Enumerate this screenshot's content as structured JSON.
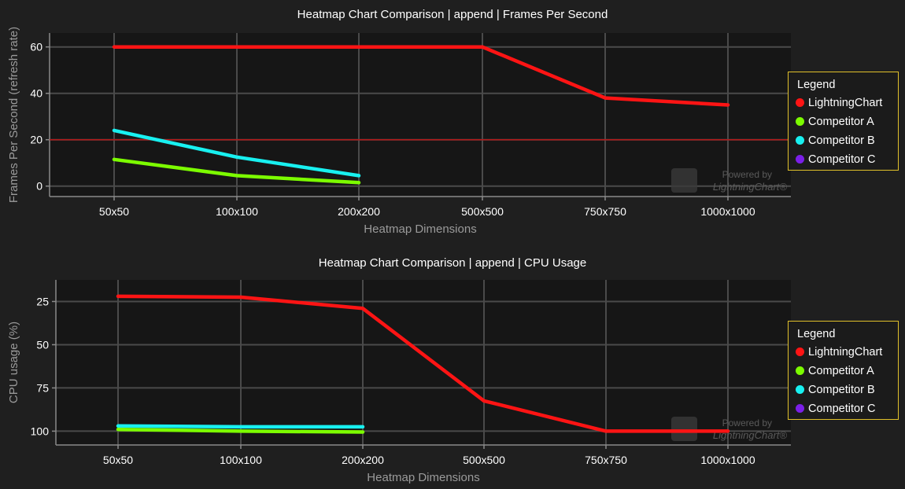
{
  "colors": {
    "LightningChart": "#ff1414",
    "Competitor A": "#7cfc00",
    "Competitor B": "#18f0f0",
    "Competitor C": "#7b1fe8",
    "threshold": "#b51a1a",
    "legend_border": "#e0c02a"
  },
  "watermark": {
    "line1": "Powered by",
    "line2": "LightningChart"
  },
  "chart_data": [
    {
      "type": "line",
      "title": "Heatmap Chart Comparison | append | Frames Per Second",
      "xlabel": "Heatmap Dimensions",
      "ylabel": "Frames Per Second (refresh rate)",
      "categories": [
        "50x50",
        "100x100",
        "200x200",
        "500x500",
        "750x750",
        "1000x1000"
      ],
      "ylim": [
        -4.5,
        66
      ],
      "yticks": [
        0,
        20,
        40,
        60
      ],
      "y_inverted": false,
      "reference_line": 20,
      "grid": true,
      "legend_title": "Legend",
      "legend_position": "right",
      "series": [
        {
          "name": "LightningChart",
          "values": [
            60,
            60,
            60,
            60,
            38,
            35
          ]
        },
        {
          "name": "Competitor A",
          "values": [
            11.5,
            4.5,
            1.5,
            null,
            null,
            null
          ]
        },
        {
          "name": "Competitor B",
          "values": [
            24,
            12.5,
            4.5,
            null,
            null,
            null
          ]
        },
        {
          "name": "Competitor C",
          "values": [
            null,
            null,
            null,
            null,
            null,
            null
          ]
        }
      ]
    },
    {
      "type": "line",
      "title": "Heatmap Chart Comparison | append | CPU Usage",
      "xlabel": "Heatmap Dimensions",
      "ylabel": "CPU usage (%)",
      "categories": [
        "50x50",
        "100x100",
        "200x200",
        "500x500",
        "750x750",
        "1000x1000"
      ],
      "ylim": [
        12.5,
        108
      ],
      "yticks": [
        25,
        50,
        75,
        100
      ],
      "y_inverted": true,
      "reference_line": null,
      "grid": true,
      "legend_title": "Legend",
      "legend_position": "right",
      "series": [
        {
          "name": "LightningChart",
          "values": [
            22,
            22.5,
            29,
            82.5,
            100,
            100
          ]
        },
        {
          "name": "Competitor A",
          "values": [
            99,
            100,
            100.5,
            null,
            null,
            null
          ]
        },
        {
          "name": "Competitor B",
          "values": [
            97,
            97.5,
            97.5,
            null,
            null,
            null
          ]
        },
        {
          "name": "Competitor C",
          "values": [
            null,
            null,
            null,
            null,
            null,
            null
          ]
        }
      ]
    }
  ]
}
